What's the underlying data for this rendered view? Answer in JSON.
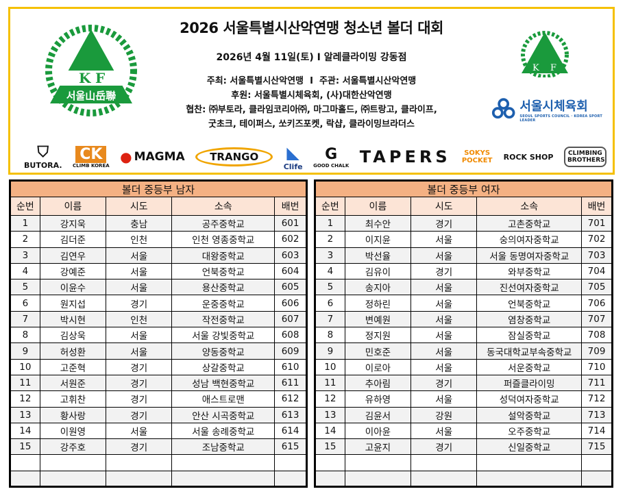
{
  "header": {
    "title": "2026 서울특별시산악연맹 청소년 볼더 대회",
    "subtitle": "2026년 4월 11일(토) I 알레클라이밍 강동점",
    "host": "주최: 서울특별시산악연맹  I  주관: 서울특별시산악연맹",
    "support": "후원: 서울특별시체육회, (사)대한산악연맹",
    "sponsors_line1": "협찬: ㈜부토라, 클라임코리아㈜, 마그마홀드, ㈜트랑고, 클라이프,",
    "sponsors_line2": "굿초크, 테이퍼스, 쏘키즈포켓, 락샵, 클라이밍브라더스",
    "left_logo_text": "서울山岳聯",
    "kf_letters": "K F",
    "seoul_sports_name": "서울시체육회",
    "seoul_sports_sub": "SEOUL SPORTS COUNCIL · KOREA SPORT LEADER",
    "brand_green": "#1a9a3c",
    "border_color": "#f5c000"
  },
  "sponsor_logos": [
    "BUTORA.",
    "CLIMB KOREA",
    "MAGMA",
    "TRANGO",
    "Clife",
    "GOOD CHALK",
    "TAPERS",
    "SOKYS POCKET",
    "ROCK SHOP",
    "CLIMBING BROTHERS"
  ],
  "columns": [
    "순번",
    "이름",
    "시도",
    "소속",
    "배번"
  ],
  "tables": [
    {
      "title": "볼더 중등부 남자",
      "rows": [
        [
          "1",
          "강지욱",
          "충남",
          "공주중학교",
          "601"
        ],
        [
          "2",
          "김더준",
          "인천",
          "인천 영종중학교",
          "602"
        ],
        [
          "3",
          "김연우",
          "서울",
          "대왕중학교",
          "603"
        ],
        [
          "4",
          "강예준",
          "서울",
          "언북중학교",
          "604"
        ],
        [
          "5",
          "이윤수",
          "서울",
          "용산중학교",
          "605"
        ],
        [
          "6",
          "원지섭",
          "경기",
          "운중중학교",
          "606"
        ],
        [
          "7",
          "박시현",
          "인천",
          "작전중학교",
          "607"
        ],
        [
          "8",
          "김상욱",
          "서울",
          "서울 강빛중학교",
          "608"
        ],
        [
          "9",
          "허성환",
          "서울",
          "양동중학교",
          "609"
        ],
        [
          "10",
          "고준혁",
          "경기",
          "상갈중학교",
          "610"
        ],
        [
          "11",
          "서원준",
          "경기",
          "성남 백현중학교",
          "611"
        ],
        [
          "12",
          "고휘찬",
          "경기",
          "애스트로맨",
          "612"
        ],
        [
          "13",
          "황사랑",
          "경기",
          "안산 시곡중학교",
          "613"
        ],
        [
          "14",
          "이원영",
          "서울",
          "서울 송례중학교",
          "614"
        ],
        [
          "15",
          "강주호",
          "경기",
          "조남중학교",
          "615"
        ],
        [
          "",
          "",
          "",
          "",
          ""
        ],
        [
          "",
          "",
          "",
          "",
          ""
        ]
      ]
    },
    {
      "title": "볼더 중등부 여자",
      "rows": [
        [
          "1",
          "최수안",
          "경기",
          "고촌중학교",
          "701"
        ],
        [
          "2",
          "이지윤",
          "서울",
          "숭의여자중학교",
          "702"
        ],
        [
          "3",
          "박선율",
          "서울",
          "서울 동명여자중학교",
          "703"
        ],
        [
          "4",
          "김유이",
          "경기",
          "와부중학교",
          "704"
        ],
        [
          "5",
          "송지아",
          "서울",
          "진선여자중학교",
          "705"
        ],
        [
          "6",
          "정하린",
          "서울",
          "언북중학교",
          "706"
        ],
        [
          "7",
          "변예원",
          "서울",
          "염창중학교",
          "707"
        ],
        [
          "8",
          "정지원",
          "서울",
          "잠실중학교",
          "708"
        ],
        [
          "9",
          "민호준",
          "서울",
          "동국대학교부속중학교",
          "709"
        ],
        [
          "10",
          "이로아",
          "서울",
          "서운중학교",
          "710"
        ],
        [
          "11",
          "추아림",
          "경기",
          "퍼즐클라이밍",
          "711"
        ],
        [
          "12",
          "유하영",
          "서울",
          "성덕여자중학교",
          "712"
        ],
        [
          "13",
          "김윤서",
          "강원",
          "설악중학교",
          "713"
        ],
        [
          "14",
          "이아윤",
          "서울",
          "오주중학교",
          "714"
        ],
        [
          "15",
          "고윤지",
          "경기",
          "신일중학교",
          "715"
        ],
        [
          "",
          "",
          "",
          "",
          ""
        ],
        [
          "",
          "",
          "",
          "",
          ""
        ]
      ]
    }
  ]
}
